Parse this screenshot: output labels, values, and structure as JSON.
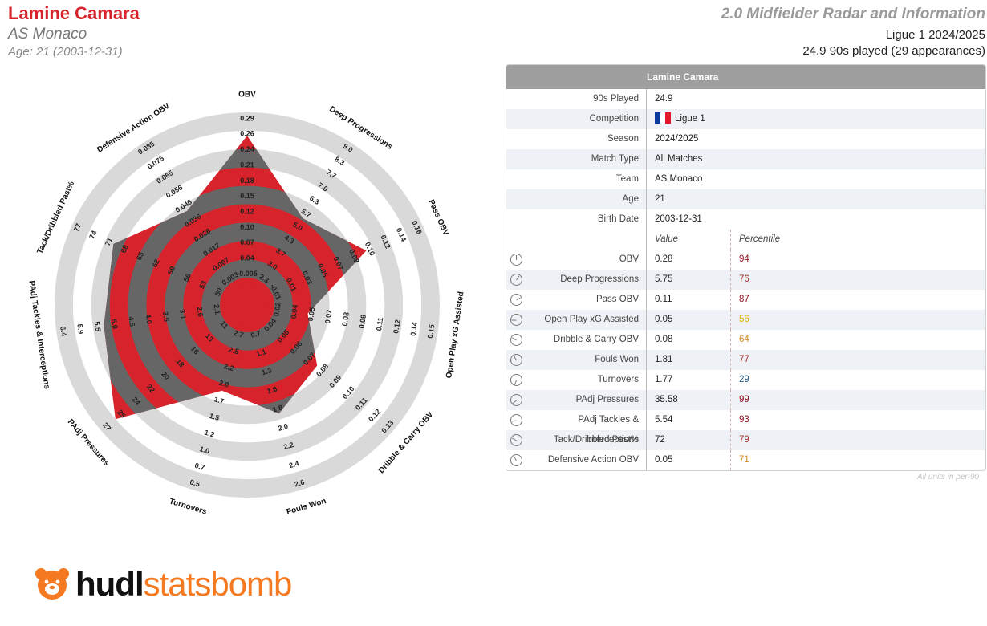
{
  "header": {
    "player": "Lamine Camara",
    "club": "AS Monaco",
    "age_line": "Age: 21 (2003-12-31)",
    "report_title": "2.0 Midfielder Radar and Information",
    "league_season": "Ligue 1 2024/2025",
    "played_line": "24.9 90s played (29 appearances)"
  },
  "colors": {
    "accent": "#d7232b",
    "ring_gray": "#d9d9d9",
    "dark_band": "#666666",
    "pct_dark_red": "#8b0f1c",
    "pct_mid_red": "#a43227",
    "pct_orange": "#d4881c",
    "pct_yellow": "#e0b000",
    "pct_blue": "#1f5f8b",
    "brand_orange": "#f47920"
  },
  "chart_data": {
    "type": "radar",
    "title": "Lamine Camara",
    "series": [
      {
        "name": "Lamine Camara",
        "values": [
          0.28,
          5.75,
          0.11,
          0.05,
          0.08,
          1.81,
          1.77,
          35.58,
          5.54,
          72,
          0.05
        ]
      }
    ],
    "axes": [
      {
        "label": "OBV",
        "ticks": [
          "-0.005",
          "0.04",
          "0.07",
          "0.10",
          "0.12",
          "0.15",
          "0.18",
          "0.21",
          "0.24",
          "0.26",
          "0.29"
        ]
      },
      {
        "label": "Deep Progressions",
        "ticks": [
          "2.3",
          "3.0",
          "3.7",
          "4.3",
          "5.0",
          "5.7",
          "6.3",
          "7.0",
          "7.7",
          "8.3",
          "9.0"
        ]
      },
      {
        "label": "Pass OBV",
        "ticks": [
          "-0.01",
          "0.01",
          "0.03",
          "0.05",
          "0.07",
          "0.08",
          "0.10",
          "0.12",
          "0.14",
          "0.16"
        ]
      },
      {
        "label": "Open Play xG Assisted",
        "ticks": [
          "0.02",
          "0.04",
          "0.05",
          "0.07",
          "0.08",
          "0.09",
          "0.11",
          "0.12",
          "0.14",
          "0.15"
        ]
      },
      {
        "label": "Dribble & Carry OBV",
        "ticks": [
          "0.04",
          "0.05",
          "0.06",
          "0.07",
          "0.08",
          "0.09",
          "0.10",
          "0.11",
          "0.12",
          "0.13"
        ]
      },
      {
        "label": "Fouls Won",
        "ticks": [
          "0.7",
          "1.1",
          "1.3",
          "1.6",
          "1.8",
          "2.0",
          "2.2",
          "2.4",
          "2.6"
        ]
      },
      {
        "label": "Turnovers",
        "ticks": [
          "2.7",
          "2.5",
          "2.2",
          "2.0",
          "1.7",
          "1.5",
          "1.2",
          "1.0",
          "0.7",
          "0.5"
        ]
      },
      {
        "label": "PAdj Pressures",
        "ticks": [
          "11",
          "13",
          "16",
          "18",
          "20",
          "22",
          "24",
          "25",
          "27"
        ]
      },
      {
        "label": "PAdj Tackles & Interceptions",
        "ticks": [
          "2.1",
          "2.6",
          "3.1",
          "3.5",
          "4.0",
          "4.5",
          "5.0",
          "5.5",
          "5.9",
          "6.4"
        ]
      },
      {
        "label": "Tack/Dribbled Past%",
        "ticks": [
          "50",
          "53",
          "56",
          "59",
          "62",
          "65",
          "68",
          "71",
          "74",
          "77"
        ]
      },
      {
        "label": "Defensive Action OBV",
        "ticks": [
          "0.003",
          "0.007",
          "0.017",
          "0.026",
          "0.036",
          "0.046",
          "0.056",
          "0.065",
          "0.075",
          "0.085"
        ]
      }
    ],
    "grid": true
  },
  "table": {
    "header_title": "Lamine Camara",
    "info_rows": [
      {
        "label": "90s Played",
        "value": "24.9"
      },
      {
        "label": "Competition",
        "value": "Ligue 1",
        "flag": "france"
      },
      {
        "label": "Season",
        "value": "2024/2025"
      },
      {
        "label": "Match Type",
        "value": "All Matches"
      },
      {
        "label": "Team",
        "value": "AS Monaco"
      },
      {
        "label": "Age",
        "value": "21"
      },
      {
        "label": "Birth Date",
        "value": "2003-12-31"
      }
    ],
    "col_value": "Value",
    "col_percentile": "Percentile",
    "metrics": [
      {
        "label": "OBV",
        "value": "0.28",
        "percentile": "94",
        "pct_color": "#8b0f1c",
        "icon": "gauge-icon"
      },
      {
        "label": "Deep Progressions",
        "value": "5.75",
        "percentile": "76",
        "pct_color": "#a43227",
        "icon": "gauge-icon"
      },
      {
        "label": "Pass OBV",
        "value": "0.11",
        "percentile": "87",
        "pct_color": "#8b0f1c",
        "icon": "gauge-icon"
      },
      {
        "label": "Open Play xG Assisted",
        "value": "0.05",
        "percentile": "56",
        "pct_color": "#e0b000",
        "icon": "gauge-icon"
      },
      {
        "label": "Dribble & Carry OBV",
        "value": "0.08",
        "percentile": "64",
        "pct_color": "#d4881c",
        "icon": "gauge-icon"
      },
      {
        "label": "Fouls Won",
        "value": "1.81",
        "percentile": "77",
        "pct_color": "#a43227",
        "icon": "gauge-icon"
      },
      {
        "label": "Turnovers",
        "value": "1.77",
        "percentile": "29",
        "pct_color": "#1f5f8b",
        "icon": "gauge-icon"
      },
      {
        "label": "PAdj Pressures",
        "value": "35.58",
        "percentile": "99",
        "pct_color": "#8b0f1c",
        "icon": "gauge-icon"
      },
      {
        "label": "PAdj Tackles & Interceptions",
        "value": "5.54",
        "percentile": "93",
        "pct_color": "#8b0f1c",
        "icon": "gauge-icon"
      },
      {
        "label": "Tack/Dribbled Past%",
        "value": "72",
        "percentile": "79",
        "pct_color": "#a43227",
        "icon": "gauge-icon"
      },
      {
        "label": "Defensive Action OBV",
        "value": "0.05",
        "percentile": "71",
        "pct_color": "#d4881c",
        "icon": "gauge-icon"
      }
    ],
    "units_note": "All units in per-90"
  },
  "logo": {
    "hudl": "hudl",
    "statsbomb": "statsbomb"
  }
}
